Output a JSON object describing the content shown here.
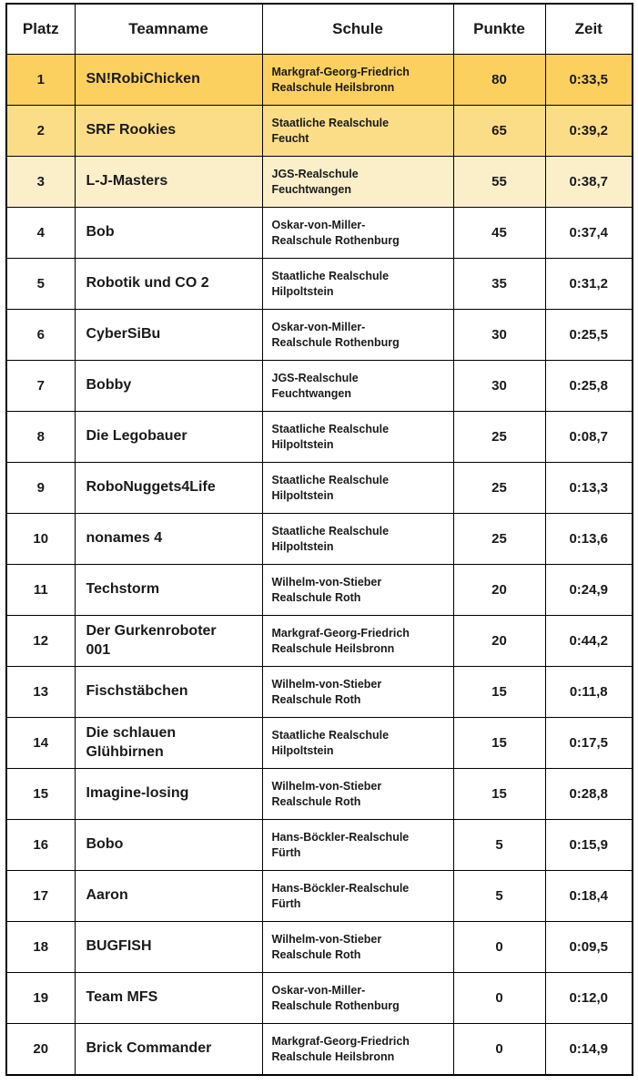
{
  "table": {
    "headers": [
      "Platz",
      "Teamname",
      "Schule",
      "Punkte",
      "Zeit"
    ],
    "column_keys": [
      "platz",
      "teamname",
      "schule",
      "punkte",
      "zeit"
    ],
    "highlight_colors": {
      "gold-1": "#FCD05F",
      "gold-2": "#FCDD87",
      "gold-3": "#FBEFCA",
      "none": "#FFFFFF"
    },
    "border_color": "#000000",
    "text_color": "#1A1A1A",
    "rows": [
      {
        "platz": "1",
        "teamname": "SN!RobiChicken",
        "schule": "Markgraf-Georg-Friedrich\nRealschule Heilsbronn",
        "punkte": "80",
        "zeit": "0:33,5",
        "highlight": "gold-1"
      },
      {
        "platz": "2",
        "teamname": "SRF Rookies",
        "schule": "Staatliche Realschule\nFeucht",
        "punkte": "65",
        "zeit": "0:39,2",
        "highlight": "gold-2"
      },
      {
        "platz": "3",
        "teamname": "L-J-Masters",
        "schule": "JGS-Realschule\nFeuchtwangen",
        "punkte": "55",
        "zeit": "0:38,7",
        "highlight": "gold-3"
      },
      {
        "platz": "4",
        "teamname": "Bob",
        "schule": "Oskar-von-Miller-\nRealschule Rothenburg",
        "punkte": "45",
        "zeit": "0:37,4",
        "highlight": "none"
      },
      {
        "platz": "5",
        "teamname": "Robotik und CO 2",
        "schule": "Staatliche Realschule\nHilpoltstein",
        "punkte": "35",
        "zeit": "0:31,2",
        "highlight": "none"
      },
      {
        "platz": "6",
        "teamname": "CyberSiBu",
        "schule": "Oskar-von-Miller-\nRealschule Rothenburg",
        "punkte": "30",
        "zeit": "0:25,5",
        "highlight": "none"
      },
      {
        "platz": "7",
        "teamname": "Bobby",
        "schule": "JGS-Realschule\nFeuchtwangen",
        "punkte": "30",
        "zeit": "0:25,8",
        "highlight": "none"
      },
      {
        "platz": "8",
        "teamname": "Die Legobauer",
        "schule": "Staatliche Realschule\nHilpoltstein",
        "punkte": "25",
        "zeit": "0:08,7",
        "highlight": "none"
      },
      {
        "platz": "9",
        "teamname": "RoboNuggets4Life",
        "schule": "Staatliche Realschule\nHilpoltstein",
        "punkte": "25",
        "zeit": "0:13,3",
        "highlight": "none"
      },
      {
        "platz": "10",
        "teamname": "nonames 4",
        "schule": "Staatliche Realschule\nHilpoltstein",
        "punkte": "25",
        "zeit": "0:13,6",
        "highlight": "none"
      },
      {
        "platz": "11",
        "teamname": "Techstorm",
        "schule": "Wilhelm-von-Stieber\nRealschule Roth",
        "punkte": "20",
        "zeit": "0:24,9",
        "highlight": "none"
      },
      {
        "platz": "12",
        "teamname": "Der Gurkenroboter\n001",
        "schule": "Markgraf-Georg-Friedrich\nRealschule Heilsbronn",
        "punkte": "20",
        "zeit": "0:44,2",
        "highlight": "none"
      },
      {
        "platz": "13",
        "teamname": "Fischstäbchen",
        "schule": "Wilhelm-von-Stieber\nRealschule Roth",
        "punkte": "15",
        "zeit": "0:11,8",
        "highlight": "none"
      },
      {
        "platz": "14",
        "teamname": "Die schlauen\nGlühbirnen",
        "schule": "Staatliche Realschule\nHilpoltstein",
        "punkte": "15",
        "zeit": "0:17,5",
        "highlight": "none"
      },
      {
        "platz": "15",
        "teamname": "Imagine-losing",
        "schule": "Wilhelm-von-Stieber\nRealschule Roth",
        "punkte": "15",
        "zeit": "0:28,8",
        "highlight": "none"
      },
      {
        "platz": "16",
        "teamname": "Bobo",
        "schule": "Hans-Böckler-Realschule\nFürth",
        "punkte": "5",
        "zeit": "0:15,9",
        "highlight": "none"
      },
      {
        "platz": "17",
        "teamname": "Aaron",
        "schule": "Hans-Böckler-Realschule\nFürth",
        "punkte": "5",
        "zeit": "0:18,4",
        "highlight": "none"
      },
      {
        "platz": "18",
        "teamname": "BUGFISH",
        "schule": "Wilhelm-von-Stieber\nRealschule Roth",
        "punkte": "0",
        "zeit": "0:09,5",
        "highlight": "none"
      },
      {
        "platz": "19",
        "teamname": "Team MFS",
        "schule": "Oskar-von-Miller-\nRealschule Rothenburg",
        "punkte": "0",
        "zeit": "0:12,0",
        "highlight": "none"
      },
      {
        "platz": "20",
        "teamname": "Brick Commander",
        "schule": "Markgraf-Georg-Friedrich\nRealschule Heilsbronn",
        "punkte": "0",
        "zeit": "0:14,9",
        "highlight": "none"
      }
    ]
  }
}
